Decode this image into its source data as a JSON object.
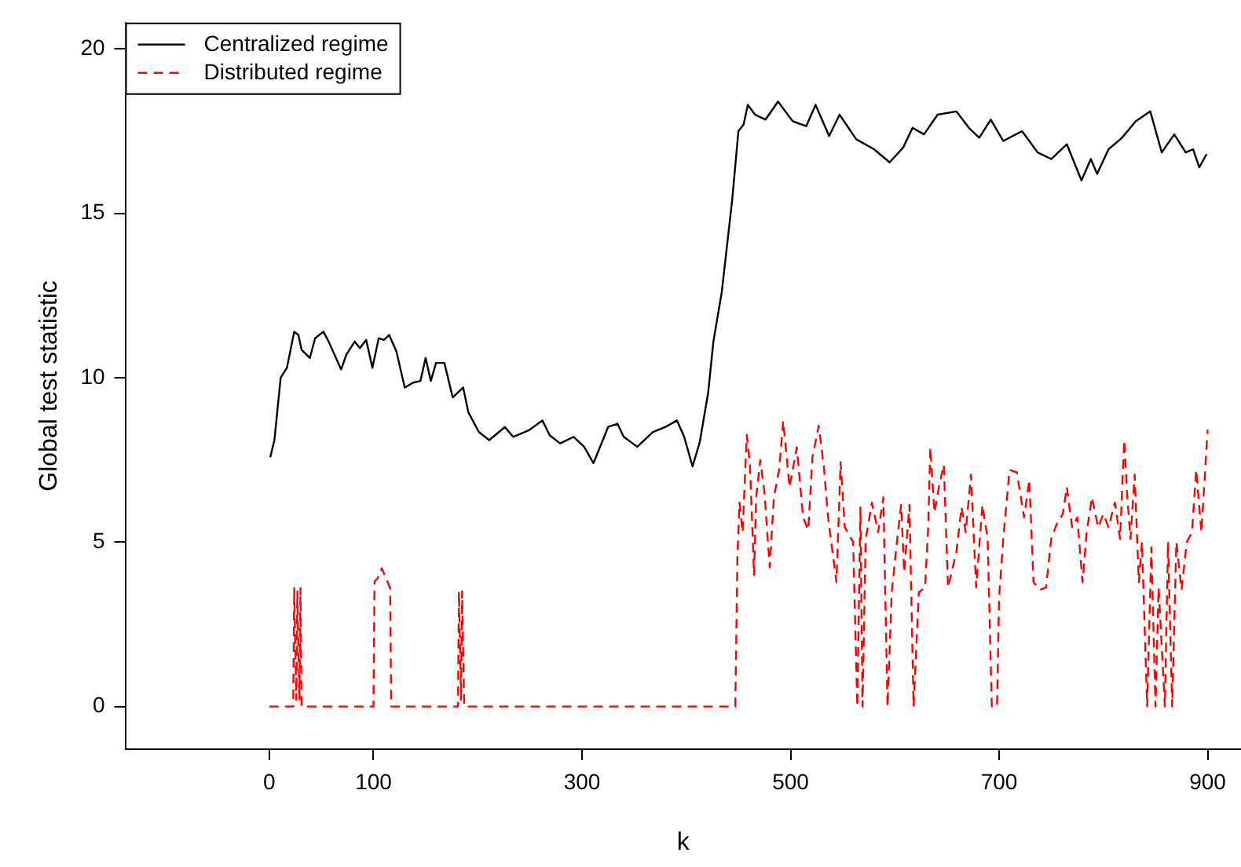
{
  "chart_data": {
    "type": "line",
    "xlabel": "k",
    "ylabel": "Global test statistic",
    "xlim": [
      -138,
      932
    ],
    "ylim": [
      -1.3,
      20.8
    ],
    "xticks": [
      0,
      100,
      300,
      500,
      700,
      900
    ],
    "yticks": [
      0,
      5,
      10,
      15,
      20
    ],
    "grid": false,
    "legend": "top left",
    "series": [
      {
        "name": "Centralized regime",
        "color": "#000000",
        "line_style": "solid",
        "x": [
          1,
          5,
          11,
          17,
          24,
          28,
          31,
          39,
          44,
          52,
          57,
          69,
          74,
          82,
          87,
          93,
          99,
          105,
          110,
          115,
          122,
          130,
          138,
          145,
          150,
          155,
          160,
          168,
          176,
          186,
          191,
          201,
          211,
          226,
          234,
          249,
          262,
          269,
          279,
          292,
          302,
          311,
          325,
          334,
          340,
          353,
          368,
          380,
          391,
          398,
          406,
          413,
          421,
          426,
          434,
          444,
          450,
          455,
          459,
          466,
          476,
          488,
          502,
          515,
          524,
          537,
          547,
          563,
          580,
          595,
          608,
          617,
          628,
          641,
          659,
          671,
          681,
          692,
          704,
          722,
          737,
          750,
          765,
          779,
          788,
          794,
          805,
          818,
          831,
          845,
          856,
          868,
          879,
          886,
          892,
          899
        ],
        "values": [
          7.58,
          8.1,
          10.0,
          10.3,
          11.4,
          11.3,
          10.85,
          10.6,
          11.2,
          11.4,
          11.1,
          10.25,
          10.7,
          11.1,
          10.9,
          11.15,
          10.3,
          11.2,
          11.15,
          11.3,
          10.8,
          9.7,
          9.85,
          9.9,
          10.6,
          9.9,
          10.45,
          10.45,
          9.4,
          9.7,
          8.95,
          8.35,
          8.1,
          8.5,
          8.2,
          8.4,
          8.7,
          8.25,
          8.0,
          8.2,
          7.9,
          7.4,
          8.5,
          8.6,
          8.2,
          7.9,
          8.35,
          8.5,
          8.7,
          8.2,
          7.3,
          8.05,
          9.55,
          11.1,
          12.6,
          15.4,
          17.5,
          17.7,
          18.3,
          18.0,
          17.85,
          18.4,
          17.8,
          17.65,
          18.3,
          17.35,
          18.0,
          17.25,
          16.95,
          16.55,
          17.0,
          17.6,
          17.4,
          18.0,
          18.1,
          17.6,
          17.3,
          17.85,
          17.2,
          17.5,
          16.85,
          16.65,
          17.1,
          16.0,
          16.65,
          16.2,
          16.95,
          17.3,
          17.8,
          18.1,
          16.85,
          17.4,
          16.85,
          16.95,
          16.4,
          16.8
        ]
      },
      {
        "name": "Distributed regime",
        "color": "#ff0000",
        "line_style": "dashed",
        "x": [
          0,
          23,
          24,
          26,
          27,
          29,
          30,
          31,
          100,
          101,
          104,
          108,
          112,
          116,
          117,
          181,
          182,
          184,
          185,
          187,
          447,
          449,
          451,
          454,
          458,
          461,
          465,
          467,
          471,
          475,
          480,
          484,
          489,
          493,
          499,
          506,
          512,
          517,
          521,
          527,
          532,
          536,
          544,
          548,
          552,
          560,
          564,
          567,
          569,
          572,
          578,
          584,
          589,
          593,
          597,
          602,
          606,
          609,
          614,
          618,
          623,
          629,
          632,
          634,
          638,
          643,
          647,
          651,
          659,
          664,
          668,
          673,
          678,
          684,
          689,
          693,
          698,
          700,
          704,
          710,
          717,
          724,
          729,
          733,
          739,
          745,
          750,
          755,
          761,
          765,
          770,
          775,
          780,
          784,
          789,
          795,
          800,
          805,
          811,
          816,
          820,
          823,
          826,
          830,
          834,
          837,
          842,
          846,
          850,
          853,
          859,
          862,
          866,
          870,
          875,
          880,
          885,
          889,
          894,
          900
        ],
        "values": [
          0,
          0,
          3.6,
          0.2,
          3.5,
          0.2,
          3.6,
          0,
          0,
          3.8,
          3.9,
          4.2,
          3.9,
          3.6,
          0,
          0,
          3.5,
          0.2,
          3.5,
          0,
          0,
          4.5,
          6.2,
          5.3,
          8.26,
          7.4,
          4.0,
          6.36,
          7.5,
          6.5,
          4.23,
          6.36,
          7.2,
          8.68,
          6.67,
          7.88,
          5.75,
          5.37,
          7.58,
          8.54,
          7.27,
          5.75,
          3.78,
          7.43,
          5.45,
          5.0,
          0,
          6.06,
          0,
          5.07,
          6.2,
          5.3,
          6.36,
          0,
          3.47,
          5.0,
          6.13,
          4.08,
          6.13,
          0,
          3.47,
          3.62,
          5.45,
          7.88,
          5.9,
          6.8,
          7.35,
          3.62,
          4.69,
          6.06,
          5.3,
          7.05,
          3.62,
          6.13,
          5.1,
          0,
          0,
          3.32,
          5.1,
          7.2,
          7.12,
          5.75,
          6.9,
          3.78,
          3.55,
          3.62,
          5.1,
          5.53,
          5.85,
          6.67,
          5.45,
          5.75,
          3.78,
          5.3,
          6.36,
          5.45,
          5.85,
          5.45,
          6.2,
          5.1,
          8.1,
          6.36,
          5.1,
          7.05,
          3.78,
          5.0,
          0,
          4.84,
          0,
          3.62,
          0,
          5.0,
          0,
          5.0,
          3.55,
          5.0,
          5.3,
          7.2,
          5.3,
          8.42
        ]
      }
    ]
  }
}
